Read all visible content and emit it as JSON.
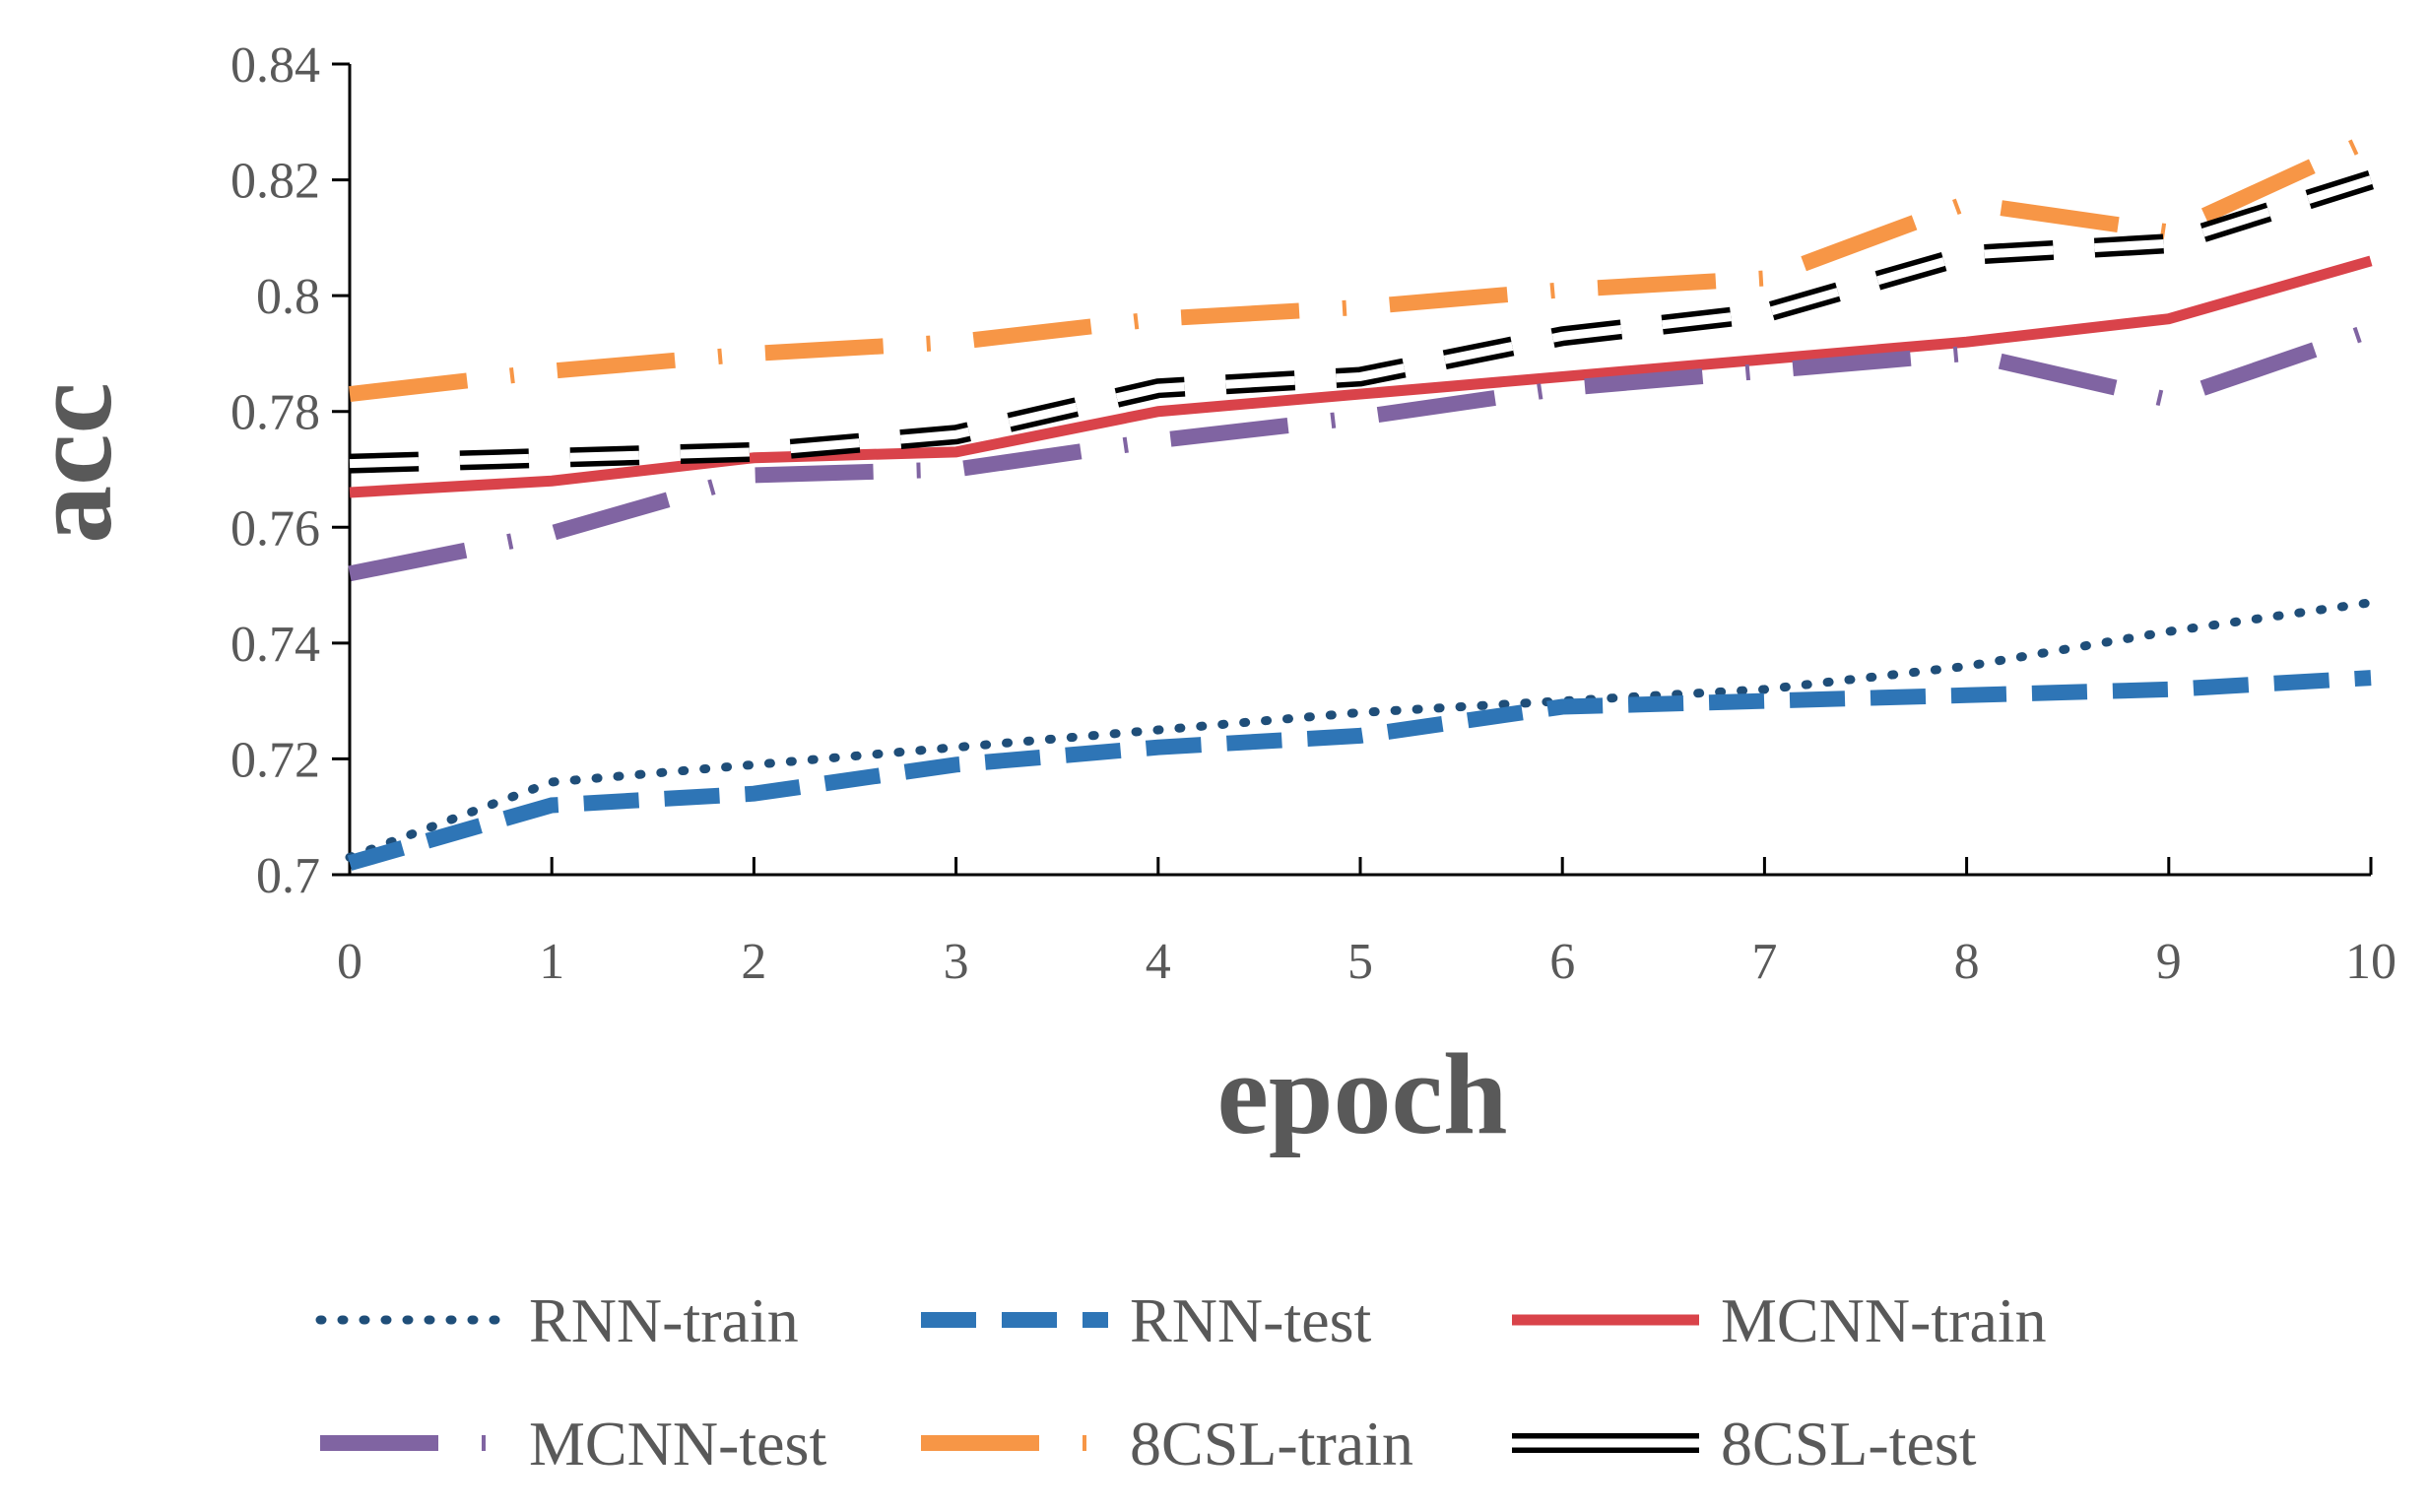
{
  "chart_data": {
    "type": "line",
    "title": "",
    "xlabel": "epoch",
    "ylabel": "acc",
    "x": [
      0,
      1,
      2,
      3,
      4,
      5,
      6,
      7,
      8,
      9,
      10
    ],
    "x_tick_labels": [
      "0",
      "1",
      "2",
      "3",
      "4",
      "5",
      "6",
      "7",
      "8",
      "9",
      "10"
    ],
    "y_tick_labels": [
      "0.7",
      "0.72",
      "0.74",
      "0.76",
      "0.78",
      "0.8",
      "0.82",
      "0.84"
    ],
    "xlim": [
      0,
      10
    ],
    "ylim": [
      0.7,
      0.84
    ],
    "yticks": [
      0.7,
      0.72,
      0.74,
      0.76,
      0.78,
      0.8,
      0.82,
      0.84
    ],
    "grid": false,
    "legend_position": "bottom",
    "series": [
      {
        "name": "RNN-train",
        "color": "#1F4E79",
        "style": "dotted",
        "values": [
          0.703,
          0.716,
          0.719,
          0.722,
          0.725,
          0.728,
          0.73,
          0.732,
          0.736,
          0.742,
          0.747
        ]
      },
      {
        "name": "RNN-test",
        "color": "#2E75B6",
        "style": "dashed",
        "values": [
          0.702,
          0.712,
          0.714,
          0.719,
          0.722,
          0.724,
          0.729,
          0.73,
          0.731,
          0.732,
          0.734
        ]
      },
      {
        "name": "MCNN-train",
        "color": "#D9434A",
        "style": "solid",
        "values": [
          0.766,
          0.768,
          0.772,
          0.773,
          0.78,
          0.783,
          0.786,
          0.789,
          0.792,
          0.796,
          0.806
        ]
      },
      {
        "name": "MCNN-test",
        "color": "#8064A2",
        "style": "dashdot",
        "values": [
          0.752,
          0.759,
          0.769,
          0.77,
          0.775,
          0.779,
          0.784,
          0.787,
          0.79,
          0.782,
          0.794
        ]
      },
      {
        "name": "8CSL-train",
        "color": "#F79646",
        "style": "dashdot",
        "values": [
          0.783,
          0.787,
          0.79,
          0.792,
          0.796,
          0.798,
          0.801,
          0.803,
          0.816,
          0.811,
          0.827
        ]
      },
      {
        "name": "8CSL-test",
        "color": "#000000",
        "style": "double",
        "values": [
          0.771,
          0.772,
          0.773,
          0.776,
          0.784,
          0.786,
          0.793,
          0.797,
          0.807,
          0.809,
          0.82
        ]
      }
    ]
  }
}
